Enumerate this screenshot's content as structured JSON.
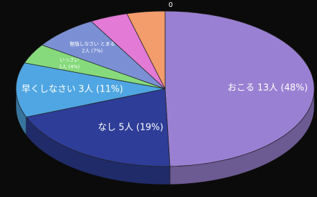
{
  "chart_data": {
    "type": "pie",
    "categories": [
      "おこる",
      "なし",
      "早くしなさい",
      "いっさい",
      "勉強しなさい とまる",
      null,
      null
    ],
    "values": [
      48,
      19,
      11,
      4,
      7,
      4,
      4
    ],
    "value_labels": [
      "13人 (48%)",
      "5人 (19%)",
      "3人 (11%)",
      "1人 (4%)",
      "2人 (7%)",
      null,
      null
    ],
    "colors": [
      "#9a80d2",
      "#2e3d98",
      "#4fa6e2",
      "#86da7c",
      "#7b90d4",
      "#e27ad6",
      "#f39c6c"
    ],
    "annotation": "0"
  }
}
